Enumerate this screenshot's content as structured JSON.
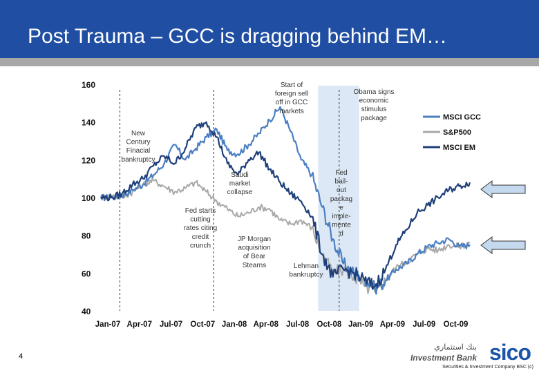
{
  "header": {
    "title": "Post Trauma – GCC is dragging behind EM…"
  },
  "page_number": "4",
  "logo": {
    "arabic": "بنك استثماري",
    "bank": "Investment Bank",
    "brand": "sico"
  },
  "footer": {
    "text": "Securities & Investment Company BSC (c)"
  },
  "colors": {
    "header_bg": "#1f4ea3",
    "msci_gcc": "#4a7fc1",
    "sp500": "#a8a8a8",
    "msci_em": "#1f3f7a",
    "highlight_band": "#dde8f6",
    "arrow_fill": "#c5d9ee"
  },
  "icons": [
    "right-arrow-icon"
  ],
  "chart_data": {
    "type": "line",
    "title": "",
    "xlabel": "",
    "ylabel": "",
    "ylim": [
      40,
      160
    ],
    "yticks": [
      40,
      60,
      80,
      100,
      120,
      140,
      160
    ],
    "ytick_labels": [
      "40",
      "60",
      "80",
      "100",
      "120",
      "140",
      "160"
    ],
    "xlim": [
      "2007-01",
      "2009-12"
    ],
    "xtick_labels": [
      "Jan-07",
      "Apr-07",
      "Jul-07",
      "Oct-07",
      "Jan-08",
      "Apr-08",
      "Jul-08",
      "Oct-08",
      "Jan-09",
      "Apr-09",
      "Jul-09",
      "Oct-09"
    ],
    "x_month_index_of_ticks": [
      0,
      3,
      6,
      9,
      12,
      15,
      18,
      21,
      24,
      27,
      30,
      33
    ],
    "grid": false,
    "legend_position": "top-right",
    "series": [
      {
        "name": "MSCI GCC",
        "x_months": [
          0,
          1,
          2,
          3,
          4,
          5,
          6,
          7,
          8,
          9,
          10,
          11,
          12,
          13,
          14,
          15,
          16,
          17,
          18,
          19,
          20,
          21,
          22,
          23,
          24,
          25,
          26,
          27,
          28,
          29,
          30,
          31,
          32,
          33,
          34,
          35
        ],
        "values": [
          100,
          100,
          101,
          104,
          107,
          112,
          118,
          128,
          120,
          126,
          132,
          136,
          125,
          123,
          128,
          134,
          141,
          148,
          135,
          120,
          112,
          95,
          78,
          65,
          60,
          57,
          52,
          56,
          62,
          65,
          70,
          74,
          76,
          78,
          74,
          75
        ]
      },
      {
        "name": "S&P500",
        "x_months": [
          0,
          1,
          2,
          3,
          4,
          5,
          6,
          7,
          8,
          9,
          10,
          11,
          12,
          13,
          14,
          15,
          16,
          17,
          18,
          19,
          20,
          21,
          22,
          23,
          24,
          25,
          26,
          27,
          28,
          29,
          30,
          31,
          32,
          33,
          34,
          35
        ],
        "values": [
          100,
          101,
          100,
          103,
          107,
          109,
          106,
          103,
          105,
          108,
          103,
          98,
          94,
          90,
          92,
          95,
          94,
          88,
          86,
          88,
          84,
          70,
          60,
          62,
          58,
          53,
          50,
          56,
          63,
          66,
          70,
          73,
          72,
          75,
          74,
          76
        ]
      },
      {
        "name": "MSCI EM",
        "x_months": [
          0,
          1,
          2,
          3,
          4,
          5,
          6,
          7,
          8,
          9,
          10,
          11,
          12,
          13,
          14,
          15,
          16,
          17,
          18,
          19,
          20,
          21,
          22,
          23,
          24,
          25,
          26,
          27,
          28,
          29,
          30,
          31,
          32,
          33,
          34,
          35
        ],
        "values": [
          100,
          100,
          102,
          107,
          110,
          117,
          122,
          118,
          126,
          137,
          140,
          132,
          118,
          112,
          120,
          124,
          115,
          108,
          102,
          98,
          90,
          70,
          58,
          62,
          60,
          56,
          53,
          62,
          75,
          83,
          92,
          96,
          100,
          104,
          106,
          108
        ]
      }
    ],
    "highlight_band": {
      "from_month": 20.6,
      "to_month": 24.5
    },
    "event_markers_months": [
      1.8,
      10.7,
      22.6
    ],
    "annotations": [
      {
        "text": "Start of foreign sell off in GCC markets",
        "lines": [
          "Start of",
          "foreign sell",
          "off in GCC",
          "markets"
        ]
      },
      {
        "text": "Obama signs economic stimulus package",
        "lines": [
          "Obama signs",
          "economic",
          "stimulus",
          "package"
        ]
      },
      {
        "text": "New Century Finacial bankruptcy",
        "lines": [
          "New",
          "Century",
          "Finacial",
          "bankruptcy"
        ]
      },
      {
        "text": "Saudi market collapse",
        "lines": [
          "Saudi",
          "market",
          "collapse"
        ]
      },
      {
        "text": "Fed starts cutting rates citing credit crunch",
        "lines": [
          "Fed starts",
          "cutting",
          "rates citing",
          "credit",
          "crunch"
        ]
      },
      {
        "text": "JP Morgan acquisition of Bear Stearns",
        "lines": [
          "JP Morgan",
          "acquisition",
          "of Bear",
          "Stearns"
        ]
      },
      {
        "text": "Fed bail-out package implemented",
        "lines": [
          "Fed",
          "bail-",
          "out",
          "packag",
          "e",
          "imple-",
          "mente",
          "d"
        ]
      },
      {
        "text": "Lehman bankruptcy",
        "lines": [
          "Lehman",
          "bankruptcy"
        ]
      }
    ]
  }
}
